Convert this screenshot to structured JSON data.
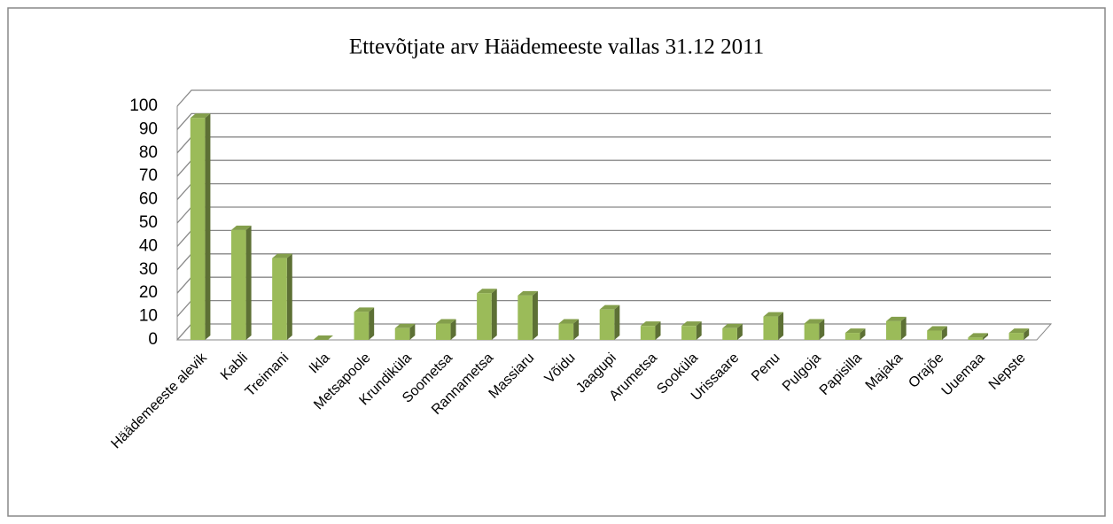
{
  "chart_data": {
    "type": "bar3d",
    "title": "Ettevõtjate arv Häädemeeste vallas  31.12 2011",
    "categories": [
      "Häädemeeste alevik",
      "Kabli",
      "Treimani",
      "Ikla",
      "Metsapoole",
      "Krundiküla",
      "Soometsa",
      "Rannametsa",
      "Massiaru",
      "Võidu",
      "Jaagupi",
      "Arumetsa",
      "Sooküla",
      "Urissaare",
      "Penu",
      "Pulgoja",
      "Papisilla",
      "Majaka",
      "Orajõe",
      "Uuemaa",
      "Nepste"
    ],
    "values": [
      95,
      47,
      35,
      0,
      12,
      5,
      7,
      20,
      19,
      7,
      13,
      6,
      6,
      5,
      10,
      7,
      3,
      8,
      4,
      1,
      3
    ],
    "color": "#9bbb59",
    "ylim": [
      0,
      100
    ],
    "yticks": [
      0,
      10,
      20,
      30,
      40,
      50,
      60,
      70,
      80,
      90,
      100
    ],
    "grid": true
  }
}
